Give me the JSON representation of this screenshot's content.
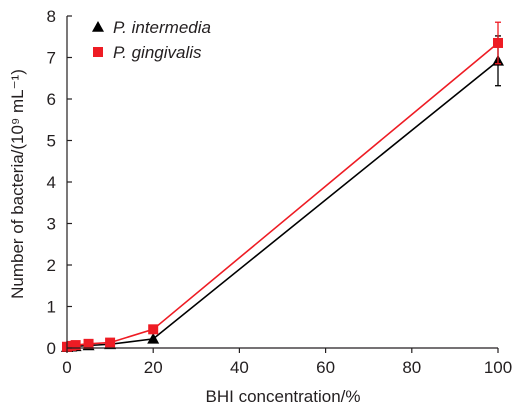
{
  "chart_data": {
    "type": "line",
    "xlabel": "BHI concentration/%",
    "ylabel": "Number of bacteria/(10⁹ mL⁻¹)",
    "xlim": [
      0,
      100
    ],
    "ylim": [
      0,
      8
    ],
    "xticks": [
      0,
      20,
      40,
      60,
      80,
      100
    ],
    "yticks": [
      0,
      1,
      2,
      3,
      4,
      5,
      6,
      7,
      8
    ],
    "grid": false,
    "legend_position": "top-left",
    "series": [
      {
        "name": "P. intermedia",
        "color": "#000000",
        "marker": "triangle",
        "x": [
          0,
          1,
          2,
          5,
          10,
          20,
          100
        ],
        "y": [
          0.02,
          0.03,
          0.04,
          0.06,
          0.09,
          0.22,
          6.92
        ],
        "error": [
          0,
          0,
          0,
          0,
          0,
          0,
          0.6
        ]
      },
      {
        "name": "P. gingivalis",
        "color": "#ee1c24",
        "marker": "square",
        "x": [
          0,
          1,
          2,
          5,
          10,
          20,
          100
        ],
        "y": [
          0.03,
          0.05,
          0.07,
          0.1,
          0.13,
          0.45,
          7.35
        ],
        "error": [
          0,
          0,
          0,
          0,
          0,
          0,
          0.5
        ]
      }
    ]
  }
}
